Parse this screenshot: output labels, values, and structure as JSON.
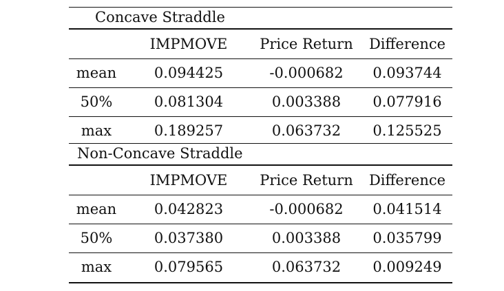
{
  "tables": [
    {
      "title": "Concave Straddle",
      "headers": [
        "",
        "IMPMOVE",
        "Price Return",
        "Difference"
      ],
      "rows": [
        {
          "label": "mean",
          "values": [
            "0.094425",
            "-0.000682",
            "0.093744"
          ]
        },
        {
          "label": "50%",
          "values": [
            "0.081304",
            "0.003388",
            "0.077916"
          ]
        },
        {
          "label": "max",
          "values": [
            "0.189257",
            "0.063732",
            "0.125525"
          ]
        }
      ]
    },
    {
      "title": "Non-Concave Straddle",
      "headers": [
        "",
        "IMPMOVE",
        "Price Return",
        "Difference"
      ],
      "rows": [
        {
          "label": "mean",
          "values": [
            "0.042823",
            "-0.000682",
            "0.041514"
          ]
        },
        {
          "label": "50%",
          "values": [
            "0.037380",
            "0.003388",
            "0.035799"
          ]
        },
        {
          "label": "max",
          "values": [
            "0.079565",
            "0.063732",
            "0.009249"
          ]
        }
      ]
    }
  ]
}
